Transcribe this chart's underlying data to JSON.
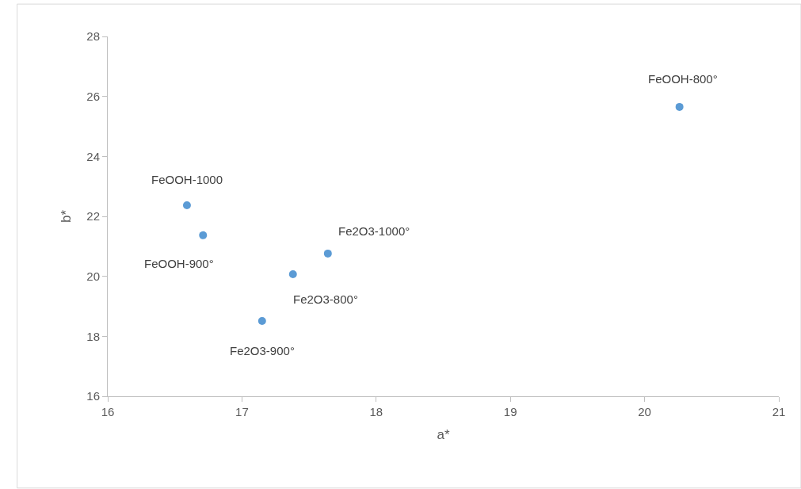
{
  "chart_data": {
    "type": "scatter",
    "xlabel": "a*",
    "ylabel": "b*",
    "x": [
      16.59,
      16.71,
      17.15,
      17.38,
      17.64,
      20.26
    ],
    "series": [
      {
        "color": "#5b9bd5",
        "values": [
          22.37,
          21.37,
          18.51,
          20.07,
          20.76,
          25.65
        ]
      }
    ],
    "annotations": [
      {
        "text": "FeOOH-1000",
        "x": 16.59,
        "y": 22.37
      },
      {
        "text": "FeOOH-900°",
        "x": 16.71,
        "y": 21.37
      },
      {
        "text": "Fe2O3-900°",
        "x": 17.15,
        "y": 18.51
      },
      {
        "text": "Fe2O3-800°",
        "x": 17.38,
        "y": 20.07
      },
      {
        "text": "Fe2O3-1000°",
        "x": 17.64,
        "y": 20.76
      },
      {
        "text": "FeOOH-800°",
        "x": 20.26,
        "y": 25.65
      }
    ],
    "xlim": [
      16,
      21
    ],
    "xticks": [
      16,
      17,
      18,
      19,
      20,
      21
    ],
    "ylim": [
      16,
      28
    ],
    "yticks": [
      16,
      18,
      20,
      22,
      24,
      26,
      28
    ],
    "grid": false,
    "marker": "circle"
  }
}
